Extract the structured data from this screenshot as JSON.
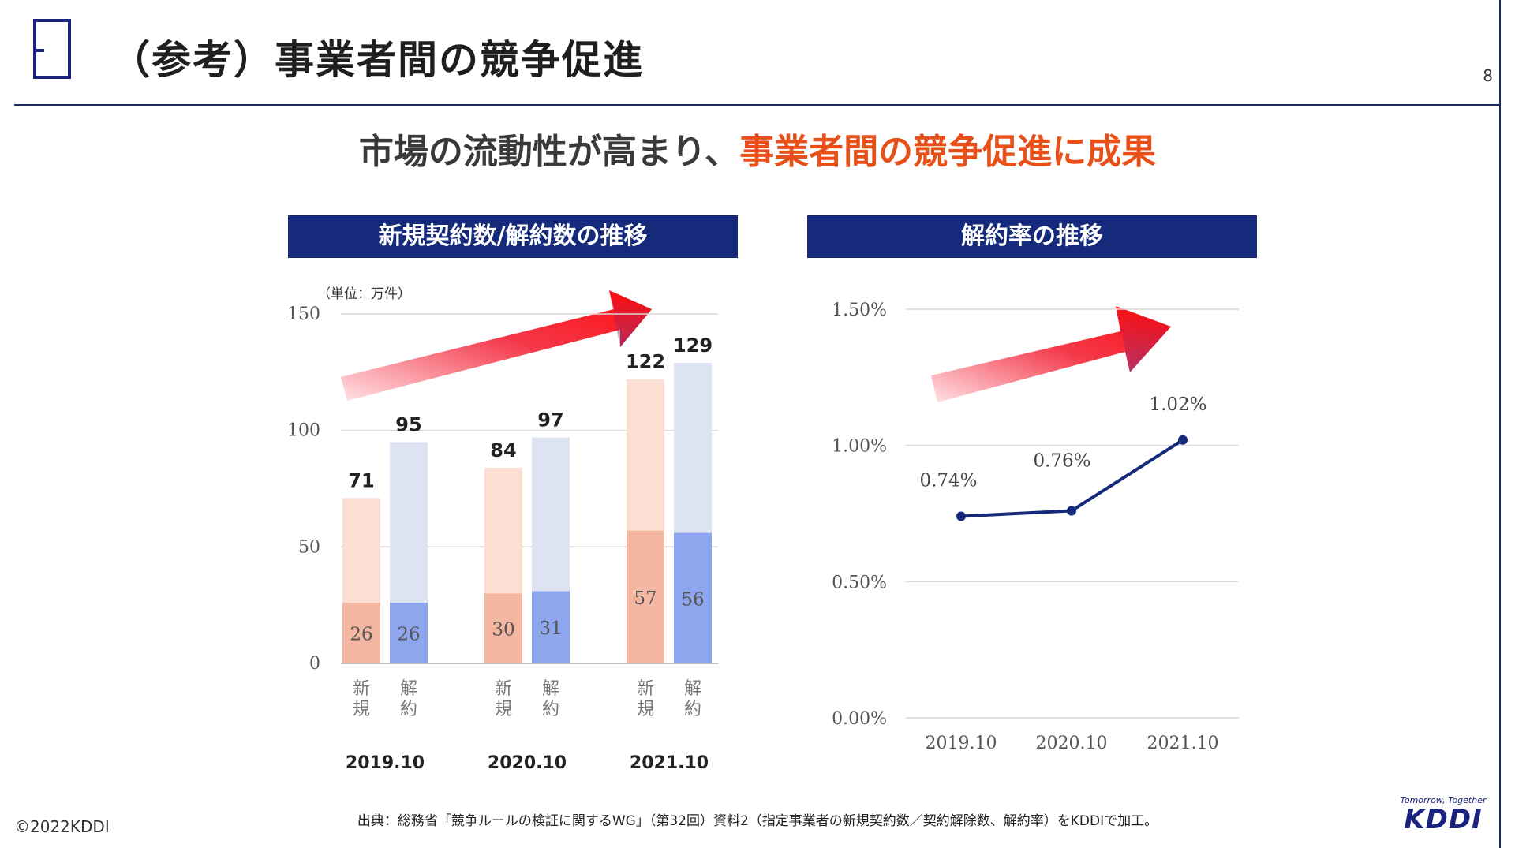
{
  "header": {
    "title": "（参考）事業者間の競争促進",
    "page_number": "8"
  },
  "headline": {
    "main": "市場の流動性が高まり、",
    "highlight": "事業者間の競争促進に成果"
  },
  "colors": {
    "navy": "#152a7a",
    "new_light": "#fbdfd3",
    "new_dark": "#f4b8a2",
    "cancel_light": "#dee3f4",
    "cancel_dark": "#8ea6ee",
    "line": "#152a7a",
    "highlight": "#e8501a"
  },
  "chart_data": [
    {
      "type": "bar",
      "title": "新規契約数/解約数の推移",
      "unit_label": "（単位：万件）",
      "ylim": [
        0,
        150
      ],
      "yticks": [
        0,
        50,
        100,
        150
      ],
      "ytick_labels": [
        "0",
        "50",
        "100",
        "150"
      ],
      "categories": [
        "2019.10",
        "2020.10",
        "2021.10"
      ],
      "bar_labels": [
        "新規",
        "解約"
      ],
      "series": [
        {
          "name": "新規",
          "total": [
            71,
            84,
            122
          ],
          "inner": [
            26,
            30,
            57
          ]
        },
        {
          "name": "解約",
          "total": [
            95,
            97,
            129
          ],
          "inner": [
            26,
            31,
            56
          ]
        }
      ],
      "total_labels": [
        [
          "71",
          "95"
        ],
        [
          "84",
          "97"
        ],
        [
          "122",
          "129"
        ]
      ],
      "inner_labels": [
        [
          "26",
          "26"
        ],
        [
          "30",
          "31"
        ],
        [
          "57",
          "56"
        ]
      ]
    },
    {
      "type": "line",
      "title": "解約率の推移",
      "ylim": [
        0,
        1.5
      ],
      "yticks": [
        0,
        0.5,
        1.0,
        1.5
      ],
      "ytick_labels": [
        "0.00%",
        "0.50%",
        "1.00%",
        "1.50%"
      ],
      "x": [
        "2019.10",
        "2020.10",
        "2021.10"
      ],
      "values": [
        0.74,
        0.76,
        1.02
      ],
      "value_labels": [
        "0.74%",
        "0.76%",
        "1.02%"
      ]
    }
  ],
  "footer": {
    "copyright": "©2022KDDI",
    "source": "出典：総務省「競争ルールの検証に関するWG」（第32回）資料2（指定事業者の新規契約数／契約解除数、解約率）をKDDIで加工。",
    "brand_tagline": "Tomorrow, Together",
    "brand_name": "KDDI"
  }
}
